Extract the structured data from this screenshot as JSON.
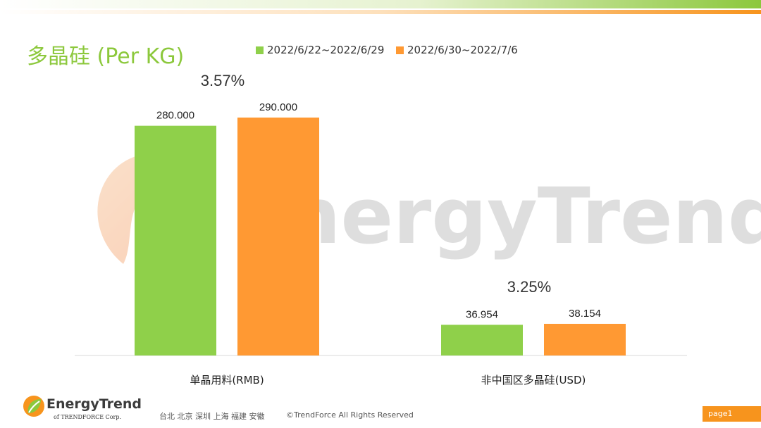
{
  "title": "多晶硅 (Per KG)",
  "watermark_text": "EnergyTrend",
  "colors": {
    "green": "#8fd04a",
    "orange": "#ff9933",
    "title": "#8cc83c",
    "accent": "#f7941d"
  },
  "legend": [
    {
      "label": "2022/6/22~2022/6/29",
      "color": "#8fd04a"
    },
    {
      "label": "2022/6/30~2022/7/6",
      "color": "#ff9933"
    }
  ],
  "chart_data": {
    "type": "bar",
    "categories": [
      "单晶用料(RMB)",
      "非中国区多晶硅(USD)"
    ],
    "series": [
      {
        "name": "2022/6/22~2022/6/29",
        "values": [
          280.0,
          36.954
        ],
        "labels": [
          "280.000",
          "36.954"
        ]
      },
      {
        "name": "2022/6/30~2022/7/6",
        "values": [
          290.0,
          38.154
        ],
        "labels": [
          "290.000",
          "38.154"
        ]
      }
    ],
    "change_labels": [
      "3.57%",
      "3.25%"
    ],
    "note": "two categories in different currencies, each scaled independently",
    "legend_position": "top",
    "grid": false
  },
  "footer": {
    "logo_name": "EnergyTrend",
    "logo_sub": "of TRENDFORCE Corp.",
    "cities": "台北  北京  深圳  上海  福建  安徽",
    "copyright": "©TrendForce All Rights Reserved",
    "page": "page1"
  }
}
